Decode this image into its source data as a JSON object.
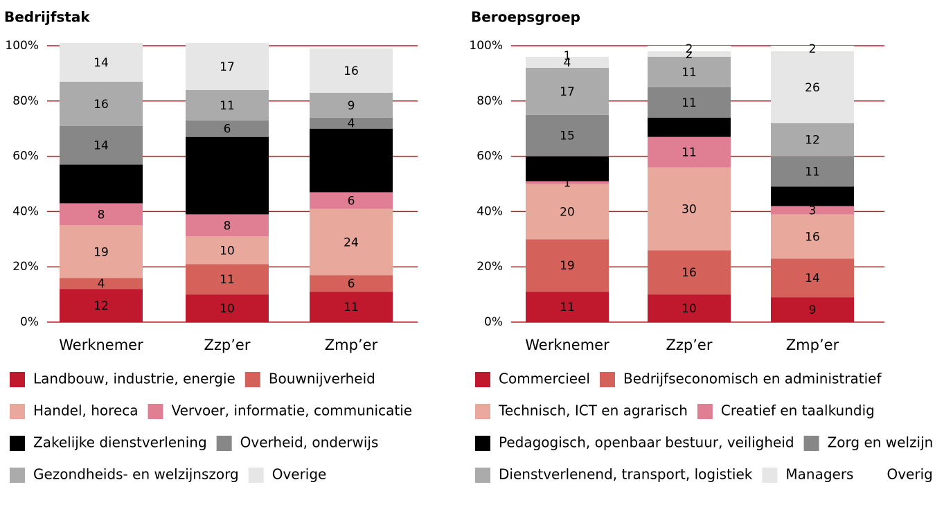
{
  "chart_data": [
    {
      "type": "bar",
      "stacked": true,
      "title": "Bedrijfstak",
      "categories": [
        "Werknemer",
        "Zzp’er",
        "Zmp’er"
      ],
      "ylim": [
        0,
        100
      ],
      "yticks": [
        {
          "value": 0,
          "label": "0%"
        },
        {
          "value": 20,
          "label": "20%"
        },
        {
          "value": 40,
          "label": "40%"
        },
        {
          "value": 60,
          "label": "60%"
        },
        {
          "value": 80,
          "label": "80%"
        },
        {
          "value": 100,
          "label": "100%"
        }
      ],
      "grid": true,
      "grid_color": "#c0192d",
      "series": [
        {
          "name": "Landbouw, industrie, energie",
          "color": "#c0192d",
          "values": [
            12,
            10,
            11
          ]
        },
        {
          "name": "Bouwnijverheid",
          "color": "#d4625a",
          "values": [
            4,
            11,
            6
          ]
        },
        {
          "name": "Handel, horeca",
          "color": "#e8a99c",
          "values": [
            19,
            10,
            24
          ]
        },
        {
          "name": "Vervoer, informatie, communicatie",
          "color": "#e07f93",
          "values": [
            8,
            8,
            6
          ]
        },
        {
          "name": "Zakelijke dienstverlening",
          "color": "#000000",
          "values": [
            14,
            28,
            23
          ]
        },
        {
          "name": "Overheid, onderwijs",
          "color": "#878787",
          "values": [
            14,
            6,
            4
          ]
        },
        {
          "name": "Gezondheids- en welzijnszorg",
          "color": "#ababab",
          "values": [
            16,
            11,
            9
          ]
        },
        {
          "name": "Overige",
          "color": "#e6e6e6",
          "values": [
            14,
            17,
            16
          ]
        }
      ]
    },
    {
      "type": "bar",
      "stacked": true,
      "title": "Beroepsgroep",
      "categories": [
        "Werknemer",
        "Zzp’er",
        "Zmp’er"
      ],
      "ylim": [
        0,
        100
      ],
      "yticks": [
        {
          "value": 0,
          "label": "0%"
        },
        {
          "value": 20,
          "label": "20%"
        },
        {
          "value": 40,
          "label": "40%"
        },
        {
          "value": 60,
          "label": "60%"
        },
        {
          "value": 80,
          "label": "80%"
        },
        {
          "value": 100,
          "label": "100%"
        }
      ],
      "grid": true,
      "grid_color": "#c0192d",
      "series": [
        {
          "name": "Commercieel",
          "color": "#c0192d",
          "values": [
            11,
            10,
            9
          ]
        },
        {
          "name": "Bedrijfseconomisch en administratief",
          "color": "#d4625a",
          "values": [
            19,
            16,
            14
          ]
        },
        {
          "name": "Technisch, ICT en agrarisch",
          "color": "#e8a99c",
          "values": [
            20,
            30,
            16
          ]
        },
        {
          "name": "Creatief en taalkundig",
          "color": "#e07f93",
          "values": [
            1,
            11,
            3
          ]
        },
        {
          "name": "Pedagogisch, openbaar bestuur, veiligheid",
          "color": "#000000",
          "values": [
            9,
            7,
            7
          ]
        },
        {
          "name": "Zorg en welzijn",
          "color": "#878787",
          "values": [
            15,
            11,
            11
          ]
        },
        {
          "name": "Dienstverlenend, transport, logistiek",
          "color": "#ababab",
          "values": [
            17,
            11,
            12
          ]
        },
        {
          "name": "Managers",
          "color": "#e6e6e6",
          "values": [
            4,
            2,
            26
          ]
        },
        {
          "name": "Overig",
          "color": "#ffffff",
          "values": [
            1,
            2,
            2
          ]
        }
      ]
    }
  ]
}
